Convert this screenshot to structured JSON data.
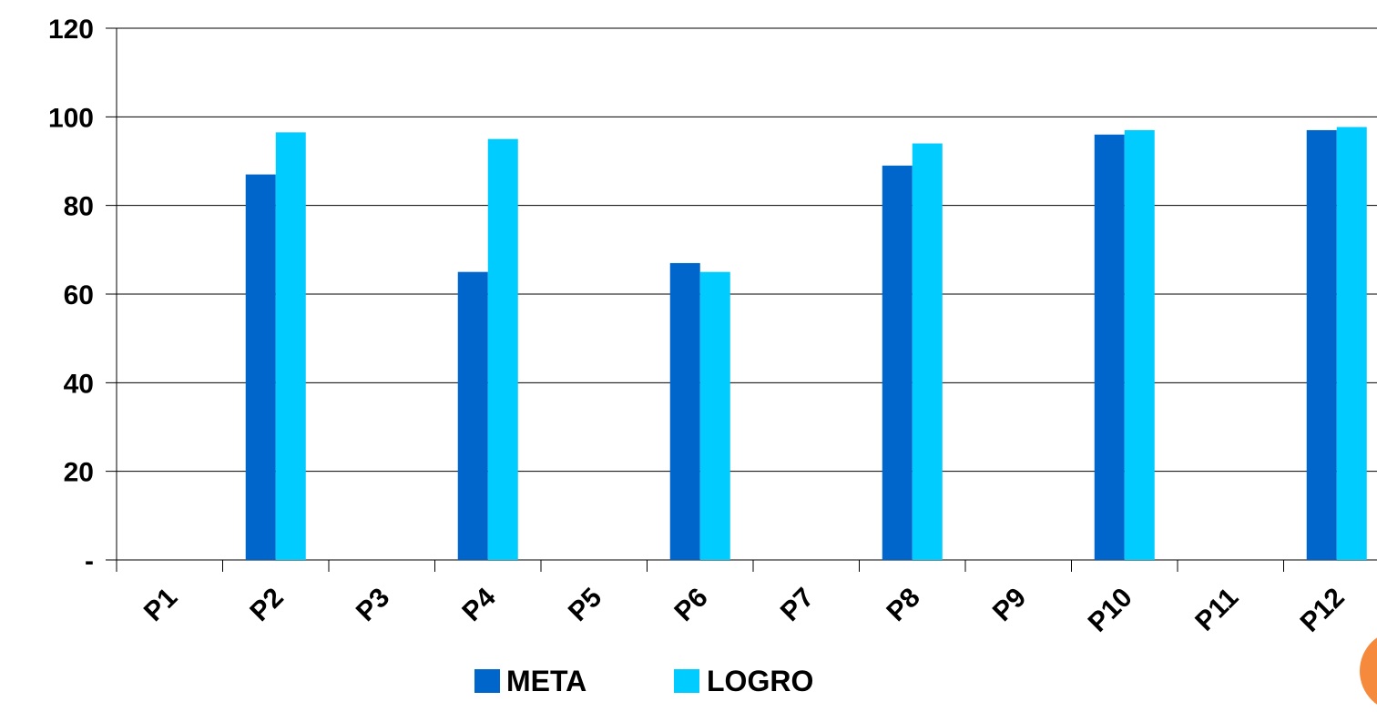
{
  "chart_data": {
    "type": "bar",
    "categories": [
      "P1",
      "P2",
      "P3",
      "P4",
      "P5",
      "P6",
      "P7",
      "P8",
      "P9",
      "P10",
      "P11",
      "P12"
    ],
    "series": [
      {
        "name": "META",
        "color": "#0066cc",
        "values": [
          null,
          87,
          null,
          65,
          null,
          67,
          null,
          89,
          null,
          96,
          null,
          97
        ]
      },
      {
        "name": "LOGRO",
        "color": "#00ccff",
        "values": [
          null,
          96.5,
          null,
          95,
          null,
          65,
          null,
          94,
          null,
          97,
          null,
          97.7
        ]
      }
    ],
    "y_ticks": [
      {
        "value": 0,
        "label": "-"
      },
      {
        "value": 20,
        "label": "20"
      },
      {
        "value": 40,
        "label": "40"
      },
      {
        "value": 60,
        "label": "60"
      },
      {
        "value": 80,
        "label": "80"
      },
      {
        "value": 100,
        "label": "100"
      },
      {
        "value": 120,
        "label": "120"
      }
    ],
    "ylim": [
      0,
      120
    ],
    "grid": true,
    "legend_position": "bottom",
    "title": "",
    "xlabel": "",
    "ylabel": ""
  },
  "decoration": {
    "accent_color": "#f58a3c"
  }
}
